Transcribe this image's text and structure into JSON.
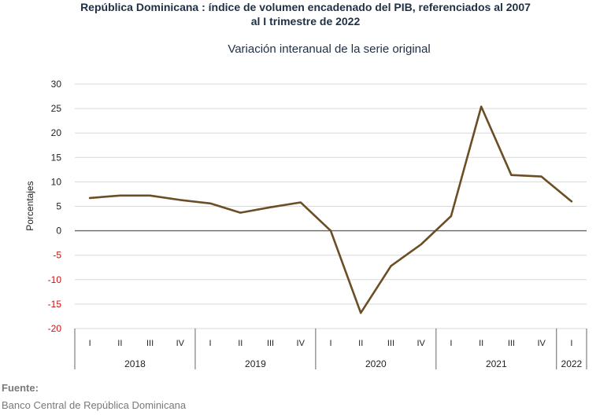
{
  "chart_data": {
    "type": "line",
    "title_line1": "República Dominicana : índice de volumen encadenado del PIB, referenciados al 2007",
    "title_line2": "al I trimestre de 2022",
    "subtitle": "Variación interanual de la serie original",
    "ylabel": "Porcentajes",
    "ylim": [
      -20,
      30
    ],
    "yticks": [
      "30",
      "25",
      "20",
      "15",
      "10",
      "5",
      "0",
      "-5",
      "-10",
      "-15",
      "-20"
    ],
    "x": [
      "I",
      "II",
      "III",
      "IV",
      "I",
      "II",
      "III",
      "IV",
      "I",
      "II",
      "III",
      "IV",
      "I",
      "II",
      "III",
      "IV",
      "I"
    ],
    "years": [
      {
        "label": "2018",
        "quarters": 4
      },
      {
        "label": "2019",
        "quarters": 4
      },
      {
        "label": "2020",
        "quarters": 4
      },
      {
        "label": "2021",
        "quarters": 4
      },
      {
        "label": "2022",
        "quarters": 1
      }
    ],
    "series": [
      {
        "values": [
          6.7,
          7.2,
          7.2,
          6.3,
          5.6,
          3.7,
          4.8,
          5.8,
          0.0,
          -16.8,
          -7.2,
          -2.8,
          3.0,
          25.4,
          11.4,
          11.1,
          6.0
        ],
        "color": "#6b4e26"
      }
    ],
    "negative_tick_color": "#cc1111",
    "grid": true
  },
  "footer": {
    "label": "Fuente:",
    "text": "Banco Central de República Dominicana"
  }
}
